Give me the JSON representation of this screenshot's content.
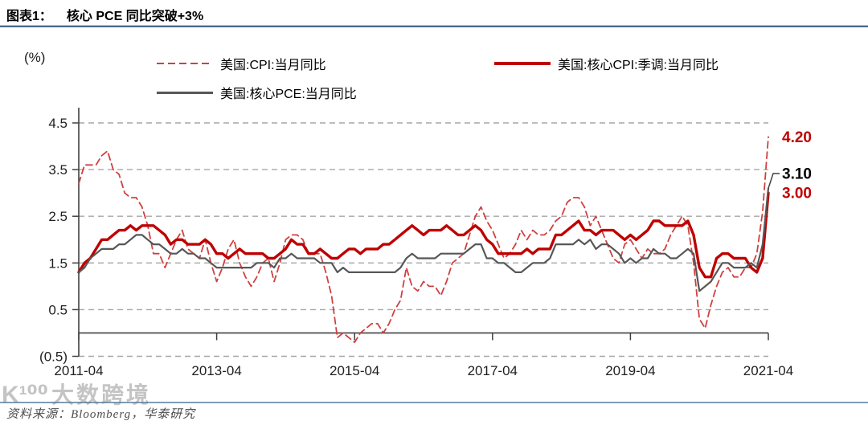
{
  "header": {
    "tag": "图表1：",
    "title": "核心 PCE 同比突破+3%"
  },
  "footer": {
    "source": "资料来源：Bloomberg，华泰研究"
  },
  "watermark": {
    "logo": "K¹⁰⁰",
    "text": "大数跨境"
  },
  "colors": {
    "cpi_dashed_red": "#cf4040",
    "core_cpi_red": "#bf0000",
    "core_pce_gray": "#575757",
    "grid_gray": "#a6a6a6",
    "axis_dark": "#404040",
    "tick_text": "#1f1f1f",
    "rule_blue": "#49698e",
    "label_red": "#c00000",
    "label_black": "#000000"
  },
  "chart_data": {
    "type": "line",
    "title": "核心 PCE 同比突破+3%",
    "unit_label": "(%)",
    "frequency": "monthly",
    "x_start": "2011-04",
    "x_end": "2021-04",
    "x_tick_labels": [
      "2011-04",
      "2013-04",
      "2015-04",
      "2017-04",
      "2019-04",
      "2021-04"
    ],
    "x_tick_indices": [
      0,
      24,
      48,
      72,
      96,
      120
    ],
    "y_ticks": [
      4.5,
      3.5,
      2.5,
      1.5,
      0.5,
      -0.5
    ],
    "y_tick_labels": [
      "4.5",
      "3.5",
      "2.5",
      "1.5",
      "0.5",
      "(0.5)"
    ],
    "ylim": [
      -0.5,
      4.9
    ],
    "grid": "horizontal-dashed",
    "legend_position": "top",
    "series": [
      {
        "name": "美国:CPI:当月同比",
        "style": "dashed",
        "color": "#cf4040",
        "values": [
          3.2,
          3.6,
          3.6,
          3.6,
          3.8,
          3.9,
          3.5,
          3.4,
          3.0,
          2.9,
          2.9,
          2.7,
          2.3,
          1.7,
          1.7,
          1.4,
          1.7,
          2.0,
          2.2,
          1.8,
          1.7,
          1.6,
          2.0,
          1.5,
          1.1,
          1.4,
          1.8,
          2.0,
          1.5,
          1.2,
          1.0,
          1.2,
          1.5,
          1.6,
          1.1,
          1.5,
          2.0,
          2.1,
          2.1,
          2.0,
          1.7,
          1.7,
          1.7,
          1.3,
          0.8,
          -0.1,
          0.0,
          -0.1,
          -0.2,
          0.0,
          0.1,
          0.2,
          0.2,
          0.0,
          0.2,
          0.5,
          0.7,
          1.4,
          1.0,
          0.9,
          1.1,
          1.0,
          1.0,
          0.8,
          1.1,
          1.5,
          1.6,
          1.7,
          2.1,
          2.5,
          2.7,
          2.4,
          2.2,
          1.9,
          1.6,
          1.7,
          1.9,
          2.2,
          2.0,
          2.2,
          2.1,
          2.1,
          2.2,
          2.4,
          2.5,
          2.8,
          2.9,
          2.9,
          2.7,
          2.3,
          2.5,
          2.2,
          1.9,
          1.6,
          1.5,
          1.9,
          2.0,
          1.8,
          1.6,
          1.8,
          1.7,
          1.7,
          1.8,
          2.1,
          2.3,
          2.5,
          2.3,
          1.5,
          0.3,
          0.1,
          0.6,
          1.0,
          1.3,
          1.4,
          1.2,
          1.2,
          1.4,
          1.4,
          1.7,
          2.6,
          4.2
        ]
      },
      {
        "name": "美国:核心CPI:季调:当月同比",
        "style": "solid-thick",
        "color": "#bf0000",
        "values": [
          1.3,
          1.5,
          1.6,
          1.8,
          2.0,
          2.0,
          2.1,
          2.2,
          2.2,
          2.3,
          2.2,
          2.3,
          2.3,
          2.3,
          2.2,
          2.1,
          1.9,
          2.0,
          2.0,
          1.9,
          1.9,
          1.9,
          2.0,
          1.9,
          1.7,
          1.7,
          1.6,
          1.7,
          1.8,
          1.7,
          1.7,
          1.7,
          1.7,
          1.6,
          1.6,
          1.7,
          1.8,
          2.0,
          1.9,
          1.9,
          1.7,
          1.7,
          1.8,
          1.7,
          1.6,
          1.6,
          1.7,
          1.8,
          1.8,
          1.7,
          1.8,
          1.8,
          1.8,
          1.9,
          1.9,
          2.0,
          2.1,
          2.2,
          2.3,
          2.2,
          2.1,
          2.2,
          2.2,
          2.2,
          2.3,
          2.2,
          2.1,
          2.1,
          2.2,
          2.3,
          2.2,
          2.0,
          1.9,
          1.7,
          1.7,
          1.7,
          1.7,
          1.7,
          1.8,
          1.7,
          1.8,
          1.8,
          1.8,
          2.1,
          2.1,
          2.2,
          2.3,
          2.4,
          2.2,
          2.2,
          2.1,
          2.2,
          2.2,
          2.2,
          2.1,
          2.0,
          2.1,
          2.0,
          2.1,
          2.2,
          2.4,
          2.4,
          2.3,
          2.3,
          2.3,
          2.3,
          2.4,
          2.1,
          1.4,
          1.2,
          1.2,
          1.6,
          1.7,
          1.7,
          1.6,
          1.6,
          1.6,
          1.4,
          1.3,
          1.6,
          3.0
        ]
      },
      {
        "name": "美国:核心PCE:当月同比",
        "style": "solid",
        "color": "#575757",
        "values": [
          1.3,
          1.4,
          1.6,
          1.7,
          1.8,
          1.8,
          1.8,
          1.9,
          1.9,
          2.0,
          2.1,
          2.1,
          2.0,
          1.9,
          1.9,
          1.8,
          1.7,
          1.7,
          1.8,
          1.7,
          1.7,
          1.6,
          1.6,
          1.5,
          1.4,
          1.4,
          1.4,
          1.4,
          1.4,
          1.4,
          1.4,
          1.5,
          1.5,
          1.5,
          1.4,
          1.6,
          1.6,
          1.7,
          1.6,
          1.6,
          1.6,
          1.6,
          1.5,
          1.5,
          1.5,
          1.3,
          1.4,
          1.3,
          1.3,
          1.3,
          1.3,
          1.3,
          1.3,
          1.3,
          1.3,
          1.3,
          1.4,
          1.6,
          1.7,
          1.6,
          1.6,
          1.6,
          1.6,
          1.7,
          1.7,
          1.7,
          1.7,
          1.7,
          1.8,
          1.9,
          1.9,
          1.6,
          1.6,
          1.5,
          1.5,
          1.4,
          1.3,
          1.3,
          1.4,
          1.5,
          1.5,
          1.5,
          1.6,
          1.9,
          1.9,
          1.9,
          1.9,
          2.0,
          1.9,
          2.0,
          1.8,
          1.9,
          1.9,
          1.8,
          1.7,
          1.5,
          1.6,
          1.5,
          1.6,
          1.6,
          1.8,
          1.7,
          1.7,
          1.6,
          1.6,
          1.7,
          1.8,
          1.7,
          0.9,
          1.0,
          1.1,
          1.3,
          1.5,
          1.5,
          1.4,
          1.4,
          1.4,
          1.5,
          1.4,
          1.9,
          3.1
        ]
      }
    ],
    "end_labels": [
      {
        "text": "4.20",
        "color": "#c00000",
        "value": 4.2,
        "leader": false
      },
      {
        "text": "3.10",
        "color": "#000000",
        "value": 3.1,
        "leader": true,
        "label_y": 216
      },
      {
        "text": "3.00",
        "color": "#c00000",
        "value": 3.0,
        "leader": false
      }
    ]
  }
}
